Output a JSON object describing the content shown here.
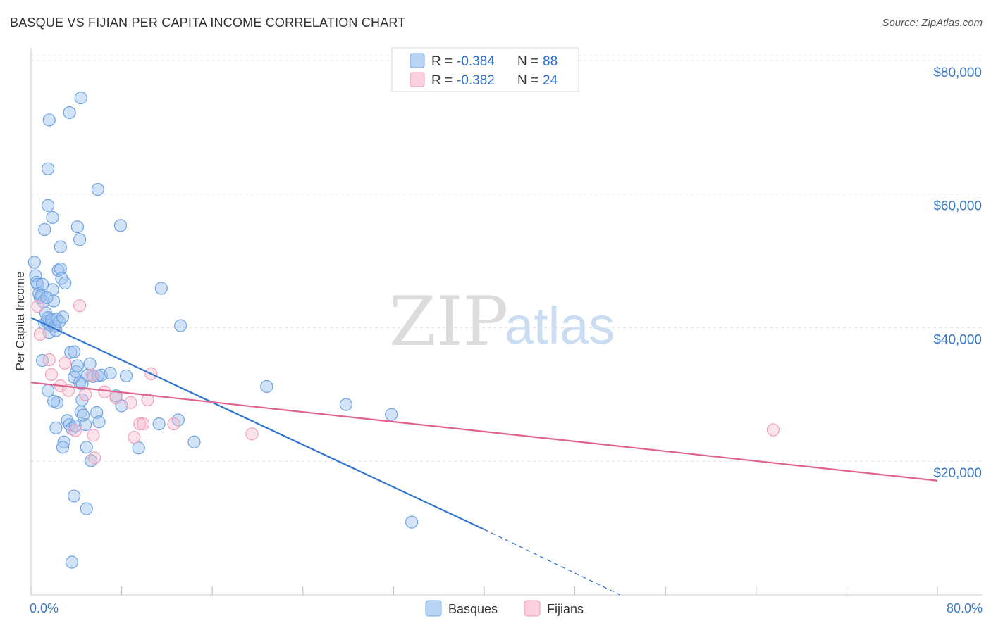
{
  "header": {
    "title": "BASQUE VS FIJIAN PER CAPITA INCOME CORRELATION CHART",
    "source": "Source: ZipAtlas.com"
  },
  "watermark": {
    "zip": "ZIP",
    "atlas": "atlas"
  },
  "legend": {
    "rows": [
      {
        "r_label": "R = ",
        "r_value": "-0.384",
        "n_label": "N = ",
        "n_value": "88",
        "color": "#9ec2ee"
      },
      {
        "r_label": "R = ",
        "r_value": "-0.382",
        "n_label": "N = ",
        "n_value": "24",
        "color": "#f5b8cb"
      }
    ]
  },
  "bottom_legend": [
    "Basques",
    "Fijians"
  ],
  "chart_data": {
    "type": "scatter",
    "title": "BASQUE VS FIJIAN PER CAPITA INCOME CORRELATION CHART",
    "xlabel": "",
    "ylabel": "Per Capita Income",
    "xlim": [
      0,
      80
    ],
    "ylim": [
      0,
      82000
    ],
    "x_tick_labels": [
      "0.0%",
      "80.0%"
    ],
    "y_ticks": [
      20000,
      40000,
      60000,
      80000
    ],
    "y_tick_labels": [
      "$20,000",
      "$40,000",
      "$60,000",
      "$80,000"
    ],
    "grid": "horizontal dashed",
    "legend_position": "top-center",
    "colors": {
      "basques": "#5b9be0",
      "fijians": "#f08aaa",
      "basques_line": "#2f74d0",
      "fijians_line": "#e0628f"
    },
    "series": [
      {
        "name": "Basques",
        "r": -0.384,
        "n": 88,
        "trendline": {
          "x0": 0,
          "y0": 41500,
          "x1": 40,
          "y1": 9800,
          "dashed_to_x": 52,
          "dashed_to_y": 0
        },
        "points": [
          [
            0.3,
            49800
          ],
          [
            0.4,
            47800
          ],
          [
            0.5,
            46800
          ],
          [
            0.6,
            46500
          ],
          [
            0.7,
            45100
          ],
          [
            0.8,
            44500
          ],
          [
            0.9,
            44800
          ],
          [
            1.0,
            46500
          ],
          [
            1.1,
            43900
          ],
          [
            1.2,
            40600
          ],
          [
            1.3,
            42200
          ],
          [
            1.4,
            40900
          ],
          [
            1.5,
            41500
          ],
          [
            1.6,
            39300
          ],
          [
            1.7,
            40400
          ],
          [
            1.8,
            41200
          ],
          [
            1.9,
            45700
          ],
          [
            2.0,
            44000
          ],
          [
            2.1,
            40200
          ],
          [
            2.2,
            39600
          ],
          [
            2.3,
            41300
          ],
          [
            2.4,
            48600
          ],
          [
            2.5,
            40900
          ],
          [
            2.6,
            48800
          ],
          [
            2.7,
            47400
          ],
          [
            2.8,
            41600
          ],
          [
            3.0,
            46700
          ],
          [
            3.5,
            36300
          ],
          [
            3.8,
            32600
          ],
          [
            4.0,
            33400
          ],
          [
            4.1,
            34300
          ],
          [
            4.3,
            31800
          ],
          [
            4.5,
            31600
          ],
          [
            5.0,
            32900
          ],
          [
            5.2,
            34600
          ],
          [
            5.5,
            32700
          ],
          [
            5.9,
            32800
          ],
          [
            6.2,
            32900
          ],
          [
            7.0,
            33200
          ],
          [
            4.5,
            29200
          ],
          [
            2.3,
            28800
          ],
          [
            2.0,
            29000
          ],
          [
            1.5,
            30600
          ],
          [
            1.0,
            35100
          ],
          [
            3.2,
            26100
          ],
          [
            3.4,
            25500
          ],
          [
            3.6,
            24900
          ],
          [
            2.2,
            25000
          ],
          [
            2.9,
            22900
          ],
          [
            3.9,
            25300
          ],
          [
            4.4,
            27400
          ],
          [
            4.6,
            26900
          ],
          [
            4.8,
            25500
          ],
          [
            5.8,
            27300
          ],
          [
            6.0,
            25900
          ],
          [
            8.0,
            28300
          ],
          [
            4.9,
            22100
          ],
          [
            2.8,
            22100
          ],
          [
            9.5,
            22000
          ],
          [
            5.3,
            20100
          ],
          [
            14.4,
            22900
          ],
          [
            11.3,
            25600
          ],
          [
            7.5,
            29800
          ],
          [
            13.0,
            26200
          ],
          [
            20.8,
            31200
          ],
          [
            27.8,
            28500
          ],
          [
            31.8,
            27000
          ],
          [
            33.6,
            10900
          ],
          [
            3.6,
            4900
          ],
          [
            4.9,
            12900
          ],
          [
            3.8,
            14800
          ],
          [
            1.6,
            71100
          ],
          [
            3.4,
            72200
          ],
          [
            4.4,
            74400
          ],
          [
            1.5,
            63800
          ],
          [
            5.9,
            60700
          ],
          [
            1.5,
            58300
          ],
          [
            1.9,
            56500
          ],
          [
            1.2,
            54700
          ],
          [
            4.1,
            55100
          ],
          [
            7.9,
            55300
          ],
          [
            4.3,
            53200
          ],
          [
            2.6,
            52100
          ],
          [
            11.5,
            45900
          ],
          [
            13.2,
            40300
          ],
          [
            1.4,
            44500
          ],
          [
            8.4,
            32800
          ],
          [
            3.8,
            36400
          ]
        ]
      },
      {
        "name": "Fijians",
        "r": -0.382,
        "n": 24,
        "trendline": {
          "x0": 0,
          "y0": 31800,
          "x1": 80,
          "y1": 17100
        },
        "points": [
          [
            0.6,
            43200
          ],
          [
            4.3,
            43300
          ],
          [
            0.8,
            39000
          ],
          [
            1.6,
            35200
          ],
          [
            3.0,
            34700
          ],
          [
            1.8,
            33000
          ],
          [
            2.6,
            31300
          ],
          [
            3.3,
            30600
          ],
          [
            4.8,
            30000
          ],
          [
            6.5,
            30400
          ],
          [
            7.5,
            29500
          ],
          [
            8.8,
            28800
          ],
          [
            10.3,
            29200
          ],
          [
            10.6,
            33100
          ],
          [
            3.9,
            24600
          ],
          [
            5.5,
            23900
          ],
          [
            9.1,
            23600
          ],
          [
            9.6,
            25600
          ],
          [
            9.9,
            25600
          ],
          [
            12.6,
            25600
          ],
          [
            19.5,
            24100
          ],
          [
            65.5,
            24700
          ],
          [
            5.6,
            20500
          ],
          [
            5.4,
            32900
          ]
        ]
      }
    ]
  }
}
